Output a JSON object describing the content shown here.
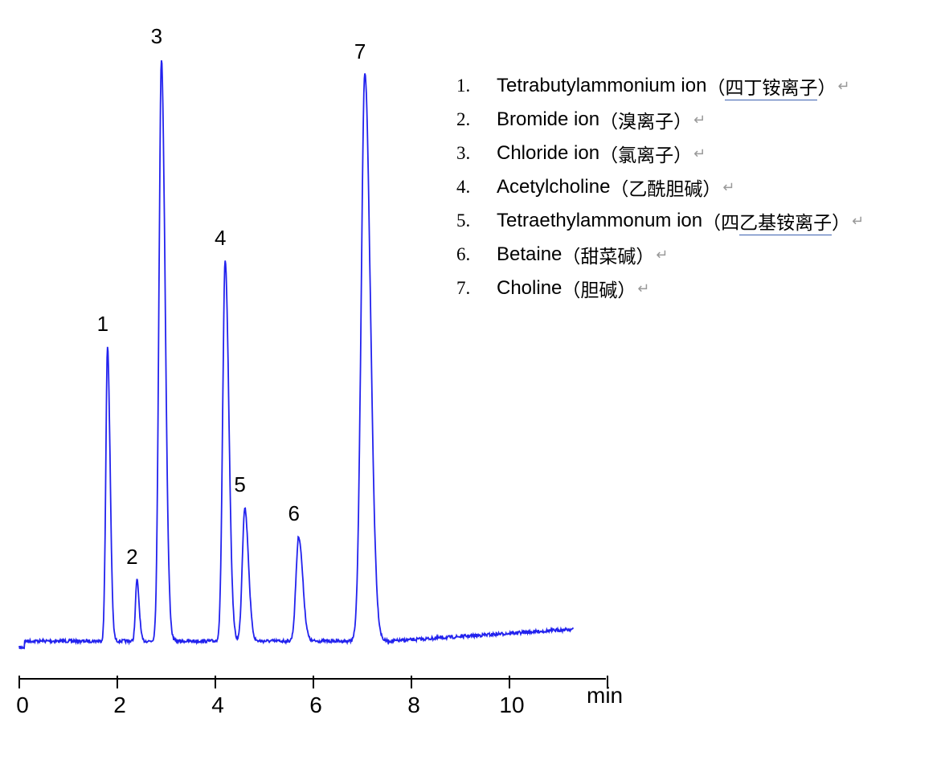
{
  "chart_data": {
    "type": "line",
    "title": "",
    "xlabel": "min",
    "ylabel": "",
    "xlim": [
      0,
      12
    ],
    "xticks": [
      0,
      2,
      4,
      6,
      8,
      10
    ],
    "grid": false,
    "line_color": "#2222ee",
    "y_axis_shown": false,
    "baseline_response": 0,
    "peaks": [
      {
        "label": "1",
        "retention_time": 1.8,
        "relative_height": 366
      },
      {
        "label": "2",
        "retention_time": 2.4,
        "relative_height": 76
      },
      {
        "label": "3",
        "retention_time": 2.9,
        "relative_height": 724
      },
      {
        "label": "4",
        "retention_time": 4.2,
        "relative_height": 473
      },
      {
        "label": "5",
        "retention_time": 4.6,
        "relative_height": 166
      },
      {
        "label": "6",
        "retention_time": 5.7,
        "relative_height": 130
      },
      {
        "label": "7",
        "retention_time": 7.05,
        "relative_height": 705
      }
    ],
    "legend": [
      {
        "num": "1.",
        "name": "Tetrabutylammonium ion",
        "cn_pre": "（",
        "cn_ul": "四丁铵离子",
        "cn_post": "）"
      },
      {
        "num": "2.",
        "name": "Bromide ion",
        "cn_pre": "（溴离子）",
        "cn_ul": "",
        "cn_post": ""
      },
      {
        "num": "3.",
        "name": "Chloride ion",
        "cn_pre": "（氯离子）",
        "cn_ul": "",
        "cn_post": ""
      },
      {
        "num": "4.",
        "name": "Acetylcholine",
        "cn_pre": "（乙酰胆碱）",
        "cn_ul": "",
        "cn_post": ""
      },
      {
        "num": "5.",
        "name": "Tetraethylammonum ion",
        "cn_pre": "（四",
        "cn_ul": "乙基铵离子",
        "cn_post": "）"
      },
      {
        "num": "6.",
        "name": "Betaine",
        "cn_pre": "（甜菜碱）",
        "cn_ul": "",
        "cn_post": ""
      },
      {
        "num": "7.",
        "name": "Choline",
        "cn_pre": "（胆碱）",
        "cn_ul": "",
        "cn_post": ""
      }
    ],
    "return_mark": "↵"
  }
}
